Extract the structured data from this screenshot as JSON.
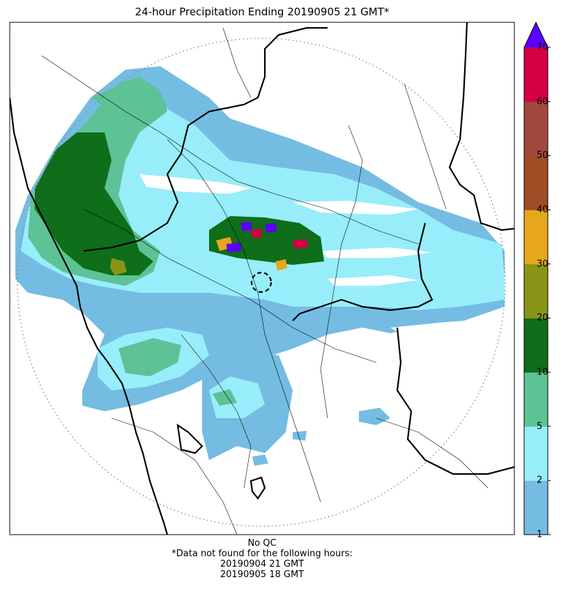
{
  "title": "24-hour Precipitation Ending 20190905 21 GMT*",
  "colorbar": {
    "ticks": [
      "1",
      "2",
      "5",
      "10",
      "20",
      "30",
      "40",
      "50",
      "60",
      "70"
    ],
    "colors": [
      "#74BCE2",
      "#98EDFB",
      "#5DC296",
      "#0E6E1A",
      "#8A9416",
      "#E5A71B",
      "#9E4D25",
      "#A3483F",
      "#D50042"
    ],
    "over_color": "#5A00FF"
  },
  "footer": {
    "qc": "No QC",
    "missing_note": "*Data not found for the following hours:",
    "missing_hours": [
      "20190904 21 GMT",
      "20190905 18 GMT"
    ]
  }
}
